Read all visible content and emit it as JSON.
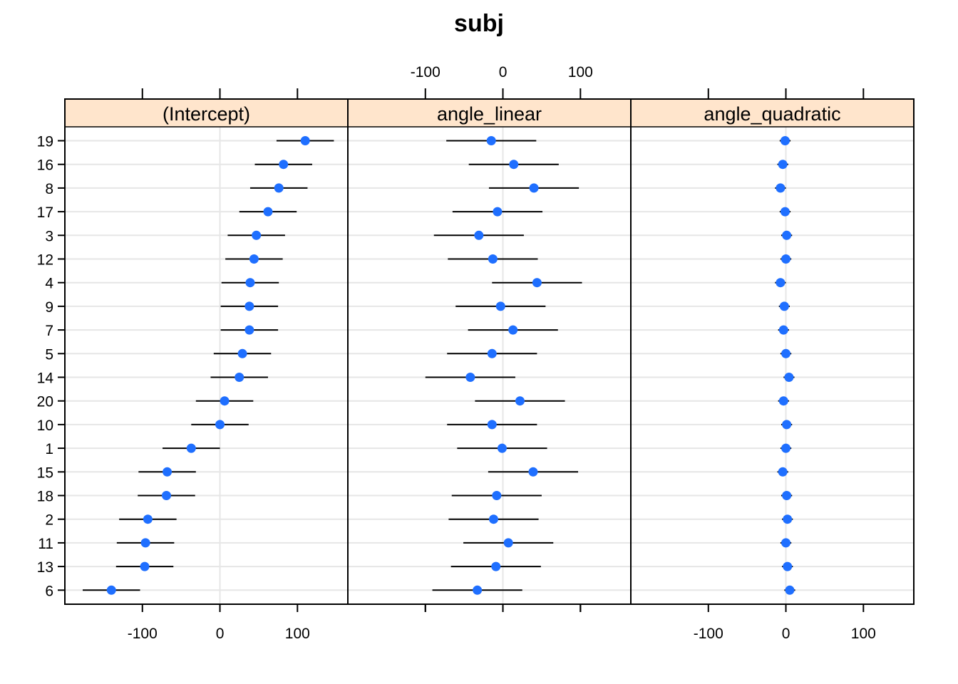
{
  "chart_data": {
    "type": "dotplot",
    "title": "subj",
    "xlim": [
      -200,
      165
    ],
    "x_ticks": [
      -100,
      0,
      100
    ],
    "x_tick_labels": [
      "-100",
      "0",
      "100"
    ],
    "grid": true,
    "strip_color": "#ffe5cc",
    "point_color": "#1f6fff",
    "row_labels": [
      "19",
      "16",
      "8",
      "17",
      "3",
      "12",
      "4",
      "9",
      "7",
      "5",
      "14",
      "20",
      "10",
      "1",
      "15",
      "18",
      "2",
      "11",
      "13",
      "6"
    ],
    "panels": [
      {
        "name": "(Intercept)",
        "values": [
          110,
          82,
          76,
          62,
          47,
          44,
          39,
          38,
          38,
          29,
          25,
          6,
          0,
          -37,
          -68,
          -69,
          -93,
          -96,
          -97,
          -140
        ],
        "lower": [
          73,
          45,
          39,
          25,
          10,
          7,
          2,
          1,
          1,
          -8,
          -12,
          -31,
          -37,
          -74,
          -105,
          -106,
          -130,
          -133,
          -134,
          -177
        ],
        "upper": [
          147,
          119,
          113,
          99,
          84,
          81,
          76,
          75,
          75,
          66,
          62,
          43,
          37,
          0,
          -31,
          -32,
          -56,
          -59,
          -60,
          -103
        ]
      },
      {
        "name": "angle_linear",
        "values": [
          -15,
          14,
          40,
          -7,
          -31,
          -13,
          44,
          -3,
          13,
          -14,
          -42,
          22,
          -14,
          -1,
          39,
          -8,
          -12,
          7,
          -9,
          -33
        ],
        "lower": [
          -73,
          -44,
          -18,
          -65,
          -89,
          -71,
          -14,
          -61,
          -45,
          -72,
          -100,
          -36,
          -72,
          -59,
          -19,
          -66,
          -70,
          -51,
          -67,
          -91
        ],
        "upper": [
          43,
          72,
          98,
          51,
          27,
          45,
          102,
          55,
          71,
          44,
          16,
          80,
          44,
          57,
          97,
          50,
          46,
          65,
          49,
          25
        ]
      },
      {
        "name": "angle_quadratic",
        "values": [
          -1,
          -4,
          -7,
          -1,
          1,
          0,
          -7,
          -2,
          -3,
          0,
          4,
          -3,
          1,
          0,
          -4,
          1,
          2,
          0,
          2,
          5
        ],
        "lower": [
          -8,
          -11,
          -14,
          -8,
          -6,
          -7,
          -14,
          -9,
          -10,
          -7,
          -3,
          -10,
          -6,
          -7,
          -11,
          -6,
          -5,
          -7,
          -5,
          -2
        ],
        "upper": [
          6,
          3,
          0,
          6,
          8,
          7,
          0,
          5,
          4,
          7,
          11,
          4,
          8,
          7,
          3,
          8,
          9,
          7,
          9,
          12
        ]
      }
    ],
    "axis_placement": {
      "bottom": [
        true,
        false,
        true
      ],
      "top": [
        false,
        true,
        false
      ],
      "bottom_labels": [
        true,
        false,
        true
      ],
      "top_labels": [
        false,
        true,
        false
      ]
    }
  }
}
